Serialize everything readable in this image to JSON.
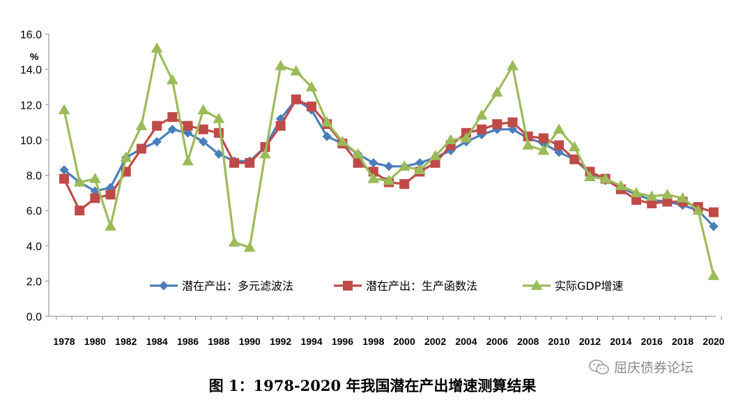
{
  "caption": "图 1：1978-2020 年我国潜在产出增速测算结果",
  "watermark": {
    "text": "屈庆债券论坛",
    "icon": "wechat-icon"
  },
  "chart_data": {
    "type": "line",
    "ylabel": "%",
    "ylim": [
      0,
      16
    ],
    "yticks": [
      "0.0",
      "2.0",
      "4.0",
      "6.0",
      "8.0",
      "10.0",
      "12.0",
      "14.0",
      "16.0"
    ],
    "xlim": [
      1978,
      2020
    ],
    "xticks": [
      "1978",
      "1980",
      "1982",
      "1984",
      "1986",
      "1988",
      "1990",
      "1992",
      "1994",
      "1996",
      "1998",
      "2000",
      "2002",
      "2004",
      "2006",
      "2008",
      "2010",
      "2012",
      "2014",
      "2016",
      "2018",
      "2020"
    ],
    "grid": false,
    "legend": "bottom-center",
    "x": [
      1978,
      1979,
      1980,
      1981,
      1982,
      1983,
      1984,
      1985,
      1986,
      1987,
      1988,
      1989,
      1990,
      1991,
      1992,
      1993,
      1994,
      1995,
      1996,
      1997,
      1998,
      1999,
      2000,
      2001,
      2002,
      2003,
      2004,
      2005,
      2006,
      2007,
      2008,
      2009,
      2010,
      2011,
      2012,
      2013,
      2014,
      2015,
      2016,
      2017,
      2018,
      2019,
      2020
    ],
    "series": [
      {
        "name": "潜在产出：多元滤波法",
        "color": "#4a7ebb",
        "marker": "diamond",
        "values": [
          8.3,
          7.6,
          7.1,
          7.3,
          9.0,
          9.5,
          9.9,
          10.6,
          10.4,
          9.9,
          9.2,
          8.8,
          8.8,
          9.6,
          11.2,
          12.3,
          11.7,
          10.2,
          9.8,
          9.2,
          8.7,
          8.5,
          8.5,
          8.7,
          9.0,
          9.4,
          9.9,
          10.3,
          10.6,
          10.6,
          10.1,
          9.8,
          9.3,
          8.9,
          8.1,
          7.7,
          7.3,
          6.9,
          6.6,
          6.5,
          6.3,
          6.0,
          5.1
        ]
      },
      {
        "name": "潜在产出：生产函数法",
        "color": "#be4b48",
        "marker": "square",
        "values": [
          7.8,
          6.0,
          6.7,
          6.9,
          8.2,
          9.5,
          10.8,
          11.3,
          10.8,
          10.6,
          10.4,
          8.7,
          8.7,
          9.6,
          10.8,
          12.3,
          11.9,
          10.9,
          9.8,
          8.7,
          8.2,
          7.6,
          7.5,
          8.2,
          8.7,
          9.7,
          10.4,
          10.6,
          10.9,
          11.0,
          10.2,
          10.1,
          9.7,
          8.9,
          8.2,
          7.8,
          7.2,
          6.6,
          6.4,
          6.5,
          6.5,
          6.2,
          5.9
        ]
      },
      {
        "name": "实际GDP增速",
        "color": "#9bbb59",
        "marker": "triangle",
        "values": [
          11.7,
          7.6,
          7.8,
          5.1,
          9.0,
          10.8,
          15.2,
          13.4,
          8.8,
          11.7,
          11.2,
          4.2,
          3.9,
          9.2,
          14.2,
          13.9,
          13.0,
          11.0,
          9.9,
          9.2,
          7.8,
          7.7,
          8.5,
          8.3,
          9.1,
          10.0,
          10.1,
          11.4,
          12.7,
          14.2,
          9.7,
          9.4,
          10.6,
          9.6,
          7.9,
          7.8,
          7.4,
          7.0,
          6.8,
          6.9,
          6.7,
          6.0,
          2.3
        ]
      }
    ]
  }
}
